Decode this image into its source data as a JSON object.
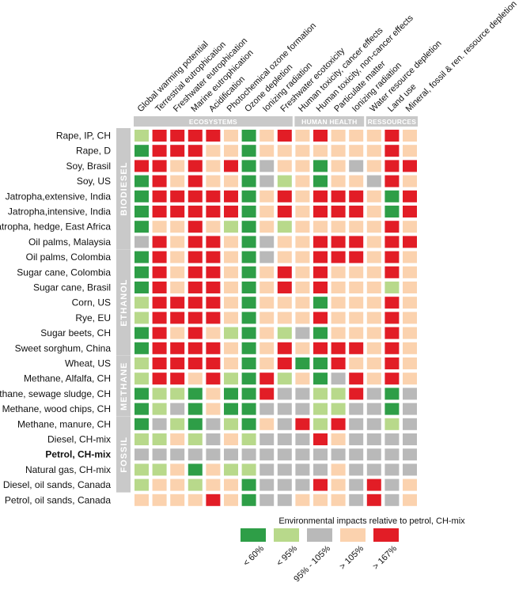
{
  "chart_data": {
    "type": "heatmap",
    "columns": [
      "Global warming potential",
      "Terrestrial eutrophication",
      "Freshwater eutrophication",
      "Marine eutrophication",
      "Acidification",
      "Photochemical ozone formation",
      "Ozone depletion",
      "Ionizing radiation",
      "Freshwater ecotoxicity",
      "Human toxicity, cancer effects",
      "Human toxicity, non-cancer effects",
      "Particulate matter",
      "Ionizing radiation",
      "Water resource depletion",
      "Land use",
      "Mineral, fossil & ren. resource depletion"
    ],
    "column_groups": [
      {
        "label": "ECOSYSTEMS",
        "start": 0,
        "end": 8
      },
      {
        "label": "HUMAN HEALTH",
        "start": 9,
        "end": 12
      },
      {
        "label": "RESSOURCES",
        "start": 13,
        "end": 15
      }
    ],
    "row_groups": [
      {
        "label": "BIODIESEL",
        "start": 0,
        "end": 7
      },
      {
        "label": "ETHANOL",
        "start": 8,
        "end": 14
      },
      {
        "label": "METHANE",
        "start": 15,
        "end": 18
      },
      {
        "label": "FOSSIL",
        "start": 19,
        "end": 23
      }
    ],
    "rows": [
      {
        "label": "Rape, IP, CH",
        "bold": false,
        "cells": [
          1,
          4,
          4,
          4,
          4,
          3,
          0,
          3,
          4,
          3,
          4,
          3,
          3,
          3,
          4,
          3
        ]
      },
      {
        "label": "Rape, D",
        "bold": false,
        "cells": [
          0,
          4,
          4,
          4,
          3,
          3,
          0,
          3,
          3,
          3,
          3,
          3,
          3,
          3,
          4,
          3
        ]
      },
      {
        "label": "Soy, Brasil",
        "bold": false,
        "cells": [
          4,
          4,
          3,
          4,
          3,
          4,
          0,
          2,
          3,
          3,
          0,
          3,
          2,
          3,
          4,
          4
        ]
      },
      {
        "label": "Soy, US",
        "bold": false,
        "cells": [
          0,
          4,
          3,
          4,
          3,
          3,
          0,
          2,
          1,
          3,
          0,
          3,
          3,
          2,
          4,
          3
        ]
      },
      {
        "label": "Jatropha,extensive, India",
        "bold": false,
        "cells": [
          0,
          4,
          4,
          4,
          4,
          4,
          0,
          3,
          4,
          3,
          4,
          4,
          4,
          3,
          0,
          4
        ]
      },
      {
        "label": "Jatropha,intensive, India",
        "bold": false,
        "cells": [
          0,
          4,
          4,
          4,
          4,
          4,
          0,
          3,
          4,
          3,
          4,
          4,
          4,
          3,
          0,
          4
        ]
      },
      {
        "label": "Jatropha, hedge, East Africa",
        "bold": false,
        "cells": [
          0,
          3,
          3,
          4,
          3,
          1,
          0,
          3,
          1,
          3,
          3,
          3,
          3,
          3,
          4,
          3
        ]
      },
      {
        "label": "Oil palms, Malaysia",
        "bold": false,
        "cells": [
          2,
          4,
          3,
          4,
          4,
          3,
          0,
          2,
          3,
          3,
          4,
          4,
          4,
          3,
          4,
          4
        ]
      },
      {
        "label": "Oil palms, Colombia",
        "bold": false,
        "cells": [
          0,
          4,
          3,
          4,
          4,
          3,
          0,
          2,
          3,
          3,
          4,
          4,
          4,
          3,
          4,
          3
        ]
      },
      {
        "label": "Sugar cane, Colombia",
        "bold": false,
        "cells": [
          0,
          4,
          3,
          4,
          4,
          3,
          0,
          3,
          4,
          3,
          4,
          3,
          3,
          3,
          4,
          3
        ]
      },
      {
        "label": "Sugar cane, Brasil",
        "bold": false,
        "cells": [
          0,
          4,
          3,
          4,
          4,
          3,
          0,
          3,
          4,
          3,
          4,
          3,
          3,
          3,
          1,
          3
        ]
      },
      {
        "label": "Corn, US",
        "bold": false,
        "cells": [
          1,
          4,
          4,
          4,
          4,
          3,
          0,
          3,
          3,
          3,
          0,
          3,
          3,
          3,
          4,
          3
        ]
      },
      {
        "label": "Rye, EU",
        "bold": false,
        "cells": [
          1,
          4,
          4,
          4,
          4,
          3,
          0,
          3,
          3,
          3,
          4,
          3,
          3,
          3,
          4,
          3
        ]
      },
      {
        "label": "Sugar beets, CH",
        "bold": false,
        "cells": [
          0,
          4,
          3,
          4,
          3,
          1,
          0,
          3,
          1,
          2,
          0,
          3,
          3,
          3,
          4,
          3
        ]
      },
      {
        "label": "Sweet sorghum, China",
        "bold": false,
        "cells": [
          0,
          4,
          4,
          4,
          4,
          3,
          0,
          3,
          4,
          3,
          4,
          4,
          4,
          3,
          4,
          3
        ]
      },
      {
        "label": "Wheat, US",
        "bold": false,
        "cells": [
          1,
          4,
          4,
          4,
          4,
          3,
          0,
          3,
          4,
          0,
          0,
          4,
          3,
          3,
          4,
          3
        ]
      },
      {
        "label": "Methane, Alfalfa, CH",
        "bold": false,
        "cells": [
          1,
          4,
          4,
          3,
          4,
          1,
          0,
          4,
          1,
          3,
          0,
          2,
          4,
          3,
          4,
          3
        ]
      },
      {
        "label": "Methane, sewage sludge, CH",
        "bold": false,
        "cells": [
          0,
          1,
          1,
          0,
          3,
          0,
          0,
          4,
          2,
          2,
          1,
          1,
          4,
          2,
          0,
          2
        ]
      },
      {
        "label": "Methane, wood chips, CH",
        "bold": false,
        "cells": [
          0,
          1,
          2,
          0,
          3,
          0,
          0,
          2,
          2,
          2,
          1,
          1,
          2,
          2,
          0,
          2
        ]
      },
      {
        "label": "Methane, manure, CH",
        "bold": false,
        "cells": [
          0,
          2,
          1,
          0,
          2,
          1,
          0,
          3,
          2,
          4,
          1,
          4,
          2,
          2,
          1,
          2
        ]
      },
      {
        "label": "Diesel, CH-mix",
        "bold": false,
        "cells": [
          1,
          1,
          3,
          1,
          2,
          3,
          1,
          2,
          2,
          2,
          4,
          3,
          2,
          2,
          2,
          2
        ]
      },
      {
        "label": "Petrol, CH-mix",
        "bold": true,
        "cells": [
          2,
          2,
          2,
          2,
          2,
          2,
          2,
          2,
          2,
          2,
          2,
          2,
          2,
          2,
          2,
          2
        ]
      },
      {
        "label": "Natural gas, CH-mix",
        "bold": false,
        "cells": [
          1,
          1,
          3,
          0,
          3,
          1,
          1,
          2,
          2,
          2,
          2,
          3,
          2,
          2,
          2,
          2
        ]
      },
      {
        "label": "Diesel, oil sands, Canada",
        "bold": false,
        "cells": [
          1,
          3,
          3,
          1,
          3,
          3,
          0,
          2,
          2,
          2,
          4,
          3,
          2,
          4,
          2,
          3
        ]
      },
      {
        "label": "Petrol, oil sands, Canada",
        "bold": false,
        "cells": [
          3,
          3,
          3,
          3,
          4,
          3,
          0,
          2,
          2,
          3,
          3,
          3,
          2,
          4,
          2,
          3
        ]
      }
    ],
    "legend": {
      "title": "Environmental impacts relative to petrol, CH-mix",
      "items": [
        {
          "label": "< 60%",
          "color": "#2e9e47"
        },
        {
          "label": "< 95%",
          "color": "#b8d98b"
        },
        {
          "label": "95% - 105%",
          "color": "#b9b9b9"
        },
        {
          "label": "> 105%",
          "color": "#fbd2ae"
        },
        {
          "label": "> 167%",
          "color": "#e21d26"
        }
      ]
    },
    "colors": [
      "#2e9e47",
      "#b8d98b",
      "#b9b9b9",
      "#fbd2ae",
      "#e21d26"
    ],
    "group_band_color": "#c9c9c9"
  }
}
